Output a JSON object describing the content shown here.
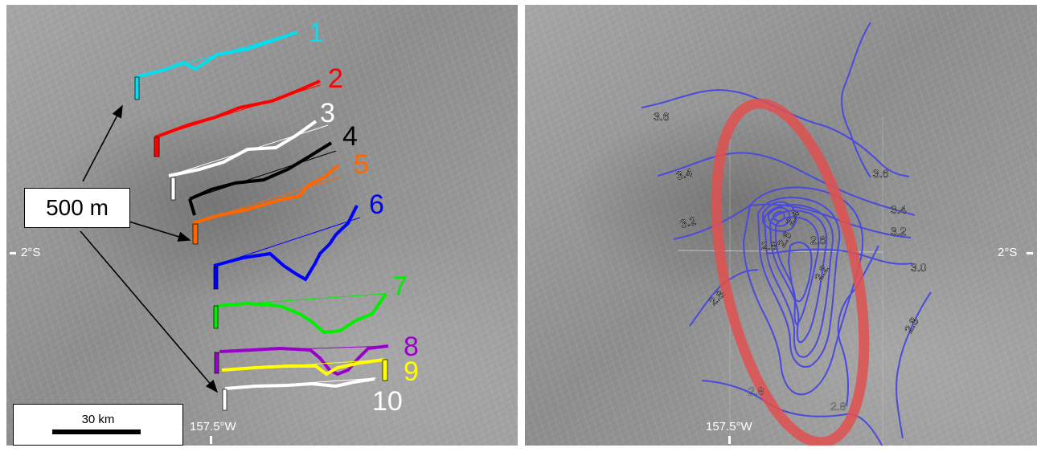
{
  "left_panel": {
    "scale_bar_label": "30 km",
    "vertical_scale_label": "500 m",
    "latitude_label": "2°S",
    "longitude_label": "157.5°W",
    "profiles": [
      {
        "label": "1",
        "color": "#00e0f0"
      },
      {
        "label": "2",
        "color": "#ff0000"
      },
      {
        "label": "3",
        "color": "#ffffff"
      },
      {
        "label": "4",
        "color": "#000000"
      },
      {
        "label": "5",
        "color": "#ff6600"
      },
      {
        "label": "6",
        "color": "#0000ff"
      },
      {
        "label": "7",
        "color": "#00ee00"
      },
      {
        "label": "8",
        "color": "#9900cc"
      },
      {
        "label": "9",
        "color": "#ffff00"
      },
      {
        "label": "10",
        "color": "#ffffff"
      }
    ]
  },
  "right_panel": {
    "latitude_label": "2°S",
    "longitude_label": "157.5°W",
    "contour_color": "#4a4adc",
    "ellipse_color": "#e05050",
    "contour_labels": [
      "3.6",
      "3.4",
      "3.2",
      "2.4",
      "2.8",
      "2.6",
      "2.6",
      "2.2",
      "2.8",
      "3.6",
      "3.4",
      "3.2",
      "3.0",
      "2.8",
      "2.8",
      "2.8"
    ]
  }
}
